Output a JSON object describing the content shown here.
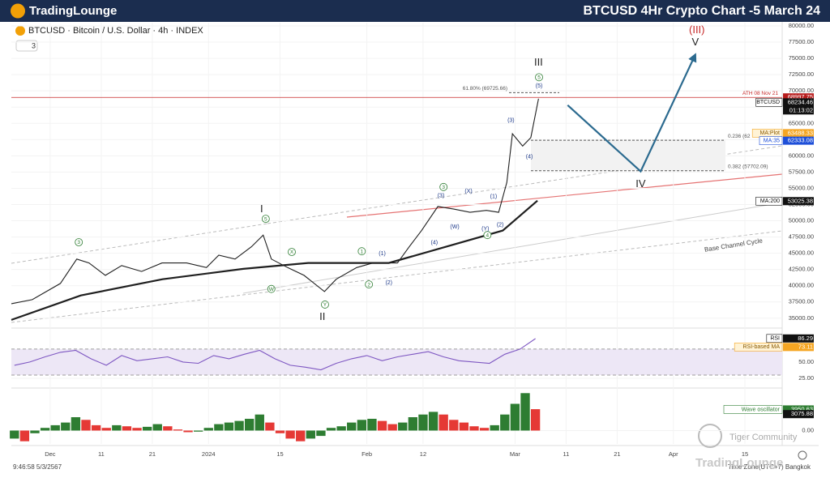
{
  "header": {
    "logo": "TradingLounge",
    "title": "BTCUSD 4Hr Crypto Chart -5 March 24"
  },
  "symbol": "BTCUSD · Bitcoin / U.S. Dollar · 4h · INDEX",
  "indicator_count": "3",
  "footer": {
    "time": "9:46:58 5/3/2567",
    "timezone": "Time Zone(UTC+7) Bangkok"
  },
  "watermark": {
    "community": "Tiger Community",
    "brand": "TradingLounge"
  },
  "chart_data": [
    {
      "type": "line",
      "xlim": [
        -7.6,
        143.3
      ],
      "xticks": [
        {
          "value": 0,
          "label": "Dec"
        },
        {
          "value": 10,
          "label": "11"
        },
        {
          "value": 20,
          "label": "21"
        },
        {
          "value": 31,
          "label": "2024"
        },
        {
          "value": 45,
          "label": "15"
        },
        {
          "value": 62,
          "label": "Feb"
        },
        {
          "value": 73,
          "label": "12"
        },
        {
          "value": 91,
          "label": "Mar"
        },
        {
          "value": 101,
          "label": "11"
        },
        {
          "value": 111,
          "label": "21"
        },
        {
          "value": 122,
          "label": "Apr"
        },
        {
          "value": 136,
          "label": "15"
        }
      ],
      "ylim": [
        34100,
        80500
      ],
      "yticks": [
        {
          "value": 35000,
          "label": "35000.00"
        },
        {
          "value": 37500,
          "label": "37500.00"
        },
        {
          "value": 40000,
          "label": "40000.00"
        },
        {
          "value": 42500,
          "label": "42500.00"
        },
        {
          "value": 45000,
          "label": "45000.00"
        },
        {
          "value": 47500,
          "label": "47500.00"
        },
        {
          "value": 50000,
          "label": "50000.00"
        },
        {
          "value": 52500,
          "label": "52500.00"
        },
        {
          "value": 55000,
          "label": "55000.00"
        },
        {
          "value": 57500,
          "label": "57500.00"
        },
        {
          "value": 60000,
          "label": "60000.00"
        },
        {
          "value": 62500,
          "label": "62500.00"
        },
        {
          "value": 65000,
          "label": "65000.00"
        },
        {
          "value": 67500,
          "label": "67500.00"
        },
        {
          "value": 70000,
          "label": "70000.00"
        },
        {
          "value": 72500,
          "label": "72500.00"
        },
        {
          "value": 75000,
          "label": "75000.00"
        },
        {
          "value": 77500,
          "label": "77500.00"
        },
        {
          "value": 80000,
          "label": "80000.00"
        }
      ],
      "series": [
        {
          "name": "BTCUSD",
          "color": "#1f1f1f",
          "x": [
            -7.6,
            -3.5,
            2,
            5.2,
            7.6,
            10.8,
            14,
            17.9,
            21.9,
            26.7,
            30.6,
            33,
            36.2,
            39.4,
            41.7,
            43.3,
            46.5,
            49.7,
            53.7,
            56,
            60,
            63.2,
            68,
            70.3,
            72.7,
            75.9,
            79,
            82.2,
            85.4,
            87.8,
            89.4,
            90.5,
            92.5,
            94.1,
            95.6
          ],
          "values": [
            37230,
            37850,
            40350,
            44100,
            43500,
            41600,
            43100,
            42200,
            43500,
            43500,
            42800,
            44700,
            44100,
            46000,
            47800,
            44100,
            42800,
            41600,
            39100,
            41000,
            42800,
            43500,
            43500,
            46000,
            48500,
            52200,
            51800,
            51300,
            51600,
            51300,
            55900,
            63400,
            61500,
            62800,
            68800
          ]
        },
        {
          "name": "MA:200",
          "color": "#1f1f1f",
          "x": [
            -7.6,
            6,
            22,
            37.8,
            50.5,
            66.3,
            77.5,
            88.6,
            95.4
          ],
          "values": [
            34730,
            38500,
            41000,
            42600,
            43500,
            43500,
            46000,
            48500,
            53100
          ]
        },
        {
          "color": "#2b6a8f",
          "x": [
            101.3,
            115.6,
            126.3
          ],
          "values": [
            67800,
            57600,
            75600
          ]
        }
      ],
      "levels": [
        {
          "label": "61.80% (69725.66)",
          "value": 69725.66,
          "color": "#555555"
        },
        {
          "label": "ATH 08 Nov 21",
          "value": 68997.75,
          "color": "#c62828"
        },
        {
          "label": "0.236 (62",
          "value": 62400,
          "color": "#555555"
        },
        {
          "label": "0.382 (57702.09)",
          "value": 57702.09,
          "color": "#555555"
        }
      ],
      "tags": [
        {
          "value": 68997.75,
          "color": "#b71c1c"
        },
        {
          "name": "BTCUSD",
          "value": 68234.46,
          "sub": "01:13:02",
          "color": "#111111"
        },
        {
          "name": "MA:Plot",
          "value": 63488.33,
          "color": "#f5a623"
        },
        {
          "name": "MA:35",
          "value": 62333.08,
          "color": "#1e4fd8"
        },
        {
          "name": "MA:200",
          "value": 53025.38,
          "color": "#111111"
        }
      ],
      "annotations": [
        {
          "text": "I",
          "x": 41.4,
          "y": 51800,
          "color": "#222222"
        },
        {
          "text": "II",
          "x": 53.3,
          "y": 35200,
          "color": "#222222"
        },
        {
          "text": "III",
          "x": 95.6,
          "y": 74400,
          "color": "#222222"
        },
        {
          "text": "IV",
          "x": 115.6,
          "y": 55700,
          "color": "#222222"
        },
        {
          "text": "V",
          "x": 126.3,
          "y": 77500,
          "color": "#222222"
        },
        {
          "text": "(III)",
          "x": 126.6,
          "y": 79400,
          "color": "#c62828"
        },
        {
          "text": "3",
          "x": 5.6,
          "y": 46700,
          "color": "#2e7d32",
          "circled": true
        },
        {
          "text": "5",
          "x": 42.2,
          "y": 50300,
          "color": "#2e7d32",
          "circled": true
        },
        {
          "text": "X",
          "x": 47.3,
          "y": 45200,
          "color": "#2e7d32",
          "circled": true
        },
        {
          "text": "W",
          "x": 43.3,
          "y": 39500,
          "color": "#2e7d32",
          "circled": true
        },
        {
          "text": "Y",
          "x": 53.8,
          "y": 37100,
          "color": "#2e7d32",
          "circled": true
        },
        {
          "text": "1",
          "x": 61,
          "y": 45300,
          "color": "#2e7d32",
          "circled": true
        },
        {
          "text": "2",
          "x": 62.4,
          "y": 40200,
          "color": "#2e7d32",
          "circled": true
        },
        {
          "text": "3",
          "x": 77,
          "y": 55200,
          "color": "#2e7d32",
          "circled": true
        },
        {
          "text": "4",
          "x": 85.6,
          "y": 47800,
          "color": "#2e7d32",
          "circled": true
        },
        {
          "text": "5",
          "x": 95.7,
          "y": 72100,
          "color": "#2e7d32",
          "circled": true
        },
        {
          "text": "(1)",
          "x": 65,
          "y": 45000,
          "color": "#1e3a8a"
        },
        {
          "text": "(2)",
          "x": 66.3,
          "y": 40500,
          "color": "#1e3a8a"
        },
        {
          "text": "(3)",
          "x": 76.5,
          "y": 53900,
          "color": "#1e3a8a"
        },
        {
          "text": "(4)",
          "x": 75.2,
          "y": 46700,
          "color": "#1e3a8a"
        },
        {
          "text": "(W)",
          "x": 79.2,
          "y": 49100,
          "color": "#1e3a8a"
        },
        {
          "text": "(X)",
          "x": 81.9,
          "y": 54600,
          "color": "#1e3a8a"
        },
        {
          "text": "(Y)",
          "x": 85.2,
          "y": 48800,
          "color": "#1e3a8a"
        },
        {
          "text": "(1)",
          "x": 86.8,
          "y": 53800,
          "color": "#1e3a8a"
        },
        {
          "text": "(2)",
          "x": 88.1,
          "y": 49400,
          "color": "#1e3a8a"
        },
        {
          "text": "(3)",
          "x": 90.2,
          "y": 65500,
          "color": "#1e3a8a"
        },
        {
          "text": "(4)",
          "x": 93.8,
          "y": 59900,
          "color": "#1e3a8a"
        },
        {
          "text": "(5)",
          "x": 95.7,
          "y": 70800,
          "color": "#1e3a8a"
        }
      ],
      "channel_label": "Base Channel Cycle"
    },
    {
      "type": "line",
      "xlim": [
        -7.6,
        143.3
      ],
      "ylim": [
        15,
        96
      ],
      "yticks": [
        {
          "value": 25,
          "label": "25.00"
        },
        {
          "value": 50,
          "label": "50.00"
        }
      ],
      "band": [
        30,
        70
      ],
      "series": [
        {
          "name": "RSI",
          "color": "#7e57c2",
          "x": [
            -7,
            -4,
            -1,
            2,
            5,
            8,
            11,
            14,
            17,
            20,
            23,
            26,
            29,
            32,
            35,
            38,
            41,
            44,
            47,
            50,
            53,
            56,
            59,
            62,
            65,
            68,
            71,
            74,
            77,
            80,
            83,
            86,
            89,
            92,
            95
          ],
          "values": [
            45,
            50,
            58,
            65,
            68,
            55,
            45,
            60,
            52,
            55,
            58,
            50,
            48,
            60,
            55,
            62,
            68,
            55,
            45,
            42,
            38,
            48,
            55,
            60,
            52,
            58,
            62,
            66,
            58,
            52,
            50,
            48,
            62,
            70,
            86
          ]
        }
      ],
      "tags": [
        {
          "name": "RSI",
          "value": 86.29,
          "color": "#111111"
        },
        {
          "name": "RSI-based MA",
          "value": 73.11,
          "color": "#f5a623"
        }
      ]
    },
    {
      "type": "bar",
      "xlim": [
        -7.6,
        143.3
      ],
      "ylim": [
        -2500,
        7500
      ],
      "yticks": [
        {
          "value": 0,
          "label": "0.00"
        }
      ],
      "up_color": "#2e7d32",
      "down_color": "#e53935",
      "x": [
        -7,
        -5,
        -3,
        -1,
        1,
        3,
        5,
        7,
        9,
        11,
        13,
        15,
        17,
        19,
        21,
        23,
        25,
        27,
        29,
        31,
        33,
        35,
        37,
        39,
        41,
        43,
        45,
        47,
        49,
        51,
        53,
        55,
        57,
        59,
        61,
        63,
        65,
        67,
        69,
        71,
        73,
        75,
        77,
        79,
        81,
        83,
        85,
        87,
        89,
        91,
        93,
        95
      ],
      "values": [
        -1500,
        -2000,
        -500,
        500,
        1000,
        1500,
        2500,
        2000,
        1000,
        500,
        1000,
        800,
        500,
        700,
        1200,
        800,
        200,
        -300,
        -200,
        500,
        1200,
        1500,
        1800,
        2200,
        3000,
        1500,
        -500,
        -1500,
        -2000,
        -1500,
        -1000,
        500,
        800,
        1500,
        2000,
        2200,
        1800,
        1200,
        1500,
        2500,
        3000,
        3500,
        3000,
        2000,
        1500,
        800,
        500,
        1000,
        3000,
        5000,
        7000,
        4000
      ],
      "tags": [
        {
          "name": "Wave oscillator",
          "value": 3950.63,
          "color": "#2e7d32"
        },
        {
          "value": 3075.88,
          "color": "#111111"
        }
      ]
    }
  ]
}
